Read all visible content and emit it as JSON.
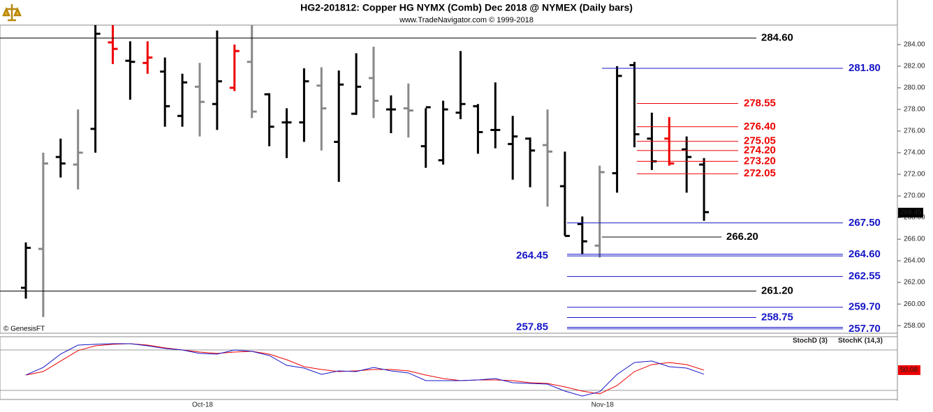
{
  "chart_data": [
    {
      "type": "ohlc",
      "title": "HG2-201812:  Copper HG NYMX (Comb) Dec 2018 @ NYMEX  (Daily bars)",
      "subtitle": "www.TradeNavigator.com © 1999-2018",
      "credit": "© GenesisFT",
      "categories": [
        null,
        null,
        null,
        null,
        null,
        null,
        null,
        null,
        null,
        null,
        "Oct-18",
        null,
        null,
        null,
        null,
        null,
        null,
        null,
        null,
        null,
        null,
        null,
        null,
        null,
        null,
        null,
        null,
        null,
        null,
        null,
        null,
        null,
        null,
        "Nov-18",
        null,
        null,
        null,
        null,
        null,
        null
      ],
      "open": [
        261.5,
        265.1,
        273.6,
        272.9,
        276.2,
        284.2,
        282.5,
        282.3,
        281.5,
        277.4,
        280.1,
        278.5,
        280.0,
        282.4,
        279.4,
        276.8,
        276.8,
        280.2,
        275.0,
        277.6,
        280.9,
        278.0,
        278.1,
        274.6,
        273.3,
        277.7,
        278.3,
        276.1,
        274.8,
        275.3,
        274.7,
        270.9,
        267.4,
        265.4,
        272.1,
        282.1,
        275.3,
        275.3,
        274.3,
        272.9
      ],
      "high": [
        265.7,
        274.0,
        275.3,
        278.0,
        285.8,
        285.8,
        284.3,
        284.3,
        282.8,
        281.3,
        282.3,
        285.3,
        284.0,
        285.8,
        279.5,
        278.1,
        281.8,
        281.9,
        281.6,
        283.2,
        283.8,
        279.3,
        280.4,
        278.1,
        278.8,
        283.4,
        278.5,
        280.5,
        277.4,
        275.4,
        278.0,
        274.1,
        268.1,
        272.8,
        282.0,
        282.4,
        277.7,
        277.3,
        275.5,
        273.5
      ],
      "low": [
        260.5,
        258.8,
        271.7,
        270.6,
        274.0,
        282.2,
        278.9,
        281.3,
        276.4,
        276.4,
        275.5,
        276.1,
        279.7,
        277.2,
        274.6,
        273.5,
        275.0,
        274.2,
        271.3,
        277.5,
        277.2,
        275.8,
        275.4,
        272.6,
        272.9,
        277.1,
        273.9,
        274.4,
        271.5,
        270.8,
        269.0,
        266.3,
        264.6,
        264.3,
        270.3,
        274.5,
        272.4,
        272.8,
        270.3,
        267.7
      ],
      "close": [
        265.2,
        273.0,
        273.0,
        274.0,
        285.0,
        283.6,
        282.4,
        282.8,
        278.3,
        280.5,
        278.7,
        280.6,
        283.4,
        277.8,
        276.4,
        276.8,
        280.6,
        278.1,
        280.3,
        280.1,
        278.8,
        278.0,
        277.9,
        278.2,
        278.0,
        278.5,
        275.9,
        276.1,
        275.5,
        274.2,
        274.1,
        266.3,
        265.8,
        272.2,
        281.1,
        275.7,
        273.2,
        273.0,
        273.6,
        268.5
      ],
      "colors": [
        "#000",
        "#888",
        "#000",
        "#888",
        "#000",
        "#e00",
        "#000",
        "#e00",
        "#000",
        "#000",
        "#888",
        "#000",
        "#e00",
        "#888",
        "#000",
        "#000",
        "#000",
        "#888",
        "#000",
        "#000",
        "#888",
        "#000",
        "#888",
        "#000",
        "#000",
        "#000",
        "#000",
        "#000",
        "#000",
        "#000",
        "#888",
        "#000",
        "#000",
        "#888",
        "#000",
        "#000",
        "#000",
        "#e00",
        "#000",
        "#000"
      ],
      "ylim": [
        257.3,
        285.8
      ],
      "yticks": [
        {
          "value": 258,
          "label": "258.00"
        },
        {
          "value": 260,
          "label": "260.00"
        },
        {
          "value": 262,
          "label": "262.00"
        },
        {
          "value": 264,
          "label": "264.00"
        },
        {
          "value": 266,
          "label": "266.00"
        },
        {
          "value": 268,
          "label": "268.00"
        },
        {
          "value": 270,
          "label": "270.00"
        },
        {
          "value": 272,
          "label": "272.00"
        },
        {
          "value": 274,
          "label": "274.00"
        },
        {
          "value": 276,
          "label": "276.00"
        },
        {
          "value": 278,
          "label": "278.00"
        },
        {
          "value": 280,
          "label": "280.00"
        },
        {
          "value": 282,
          "label": "282.00"
        },
        {
          "value": 284,
          "label": "284.00"
        }
      ],
      "last_price": {
        "value": 268.45,
        "label": "268.45"
      },
      "levels": [
        {
          "value": 284.6,
          "label": "284.60",
          "color": "#000"
        },
        {
          "value": 281.8,
          "label": "281.80",
          "color": "#1515c8"
        },
        {
          "value": 278.55,
          "label": "278.55",
          "color": "#e00"
        },
        {
          "value": 276.4,
          "label": "276.40",
          "color": "#e00"
        },
        {
          "value": 275.05,
          "label": "275.05",
          "color": "#e00"
        },
        {
          "value": 274.2,
          "label": "274.20",
          "color": "#e00"
        },
        {
          "value": 273.2,
          "label": "273.20",
          "color": "#e00"
        },
        {
          "value": 272.05,
          "label": "272.05",
          "color": "#e00"
        },
        {
          "value": 267.5,
          "label": "267.50",
          "color": "#1515c8"
        },
        {
          "value": 266.2,
          "label": "266.20",
          "color": "#000"
        },
        {
          "value": 264.6,
          "label": "264.60",
          "color": "#1515c8"
        },
        {
          "value": 264.45,
          "label": "264.45",
          "color": "#1515c8"
        },
        {
          "value": 262.55,
          "label": "262.55",
          "color": "#1515c8"
        },
        {
          "value": 261.2,
          "label": "261.20",
          "color": "#000"
        },
        {
          "value": 259.7,
          "label": "259.70",
          "color": "#1515c8"
        },
        {
          "value": 258.75,
          "label": "258.75",
          "color": "#1515c8"
        },
        {
          "value": 257.85,
          "label": "257.85",
          "color": "#1515c8"
        },
        {
          "value": 257.7,
          "label": "257.70",
          "color": "#1515c8"
        }
      ]
    },
    {
      "type": "line",
      "series": [
        {
          "name": "StochD (3)",
          "color": "#e00",
          "values": [
            42.8,
            47.9,
            63.5,
            79,
            86.2,
            88.3,
            89.3,
            87.2,
            83.1,
            80,
            76.9,
            74.8,
            76.9,
            77.9,
            73.8,
            65.5,
            55.2,
            51,
            47.9,
            49,
            51,
            51,
            49,
            42.8,
            37.6,
            34.5,
            35.5,
            35.5,
            34.5,
            31.4,
            30.4,
            25.2,
            19,
            14.9,
            27.3,
            47.9,
            58.3,
            61.4,
            58.3,
            50.08
          ]
        },
        {
          "name": "StochK (14,3)",
          "color": "#1515c8",
          "values": [
            42.8,
            54.1,
            73.8,
            87.2,
            88.3,
            89.3,
            89.3,
            86.2,
            82.1,
            80,
            74.8,
            73.8,
            80,
            77.9,
            71.7,
            57.2,
            53.1,
            43.8,
            49,
            47.9,
            54.1,
            49,
            45.9,
            34.5,
            34.5,
            34.5,
            35.5,
            37.6,
            31.4,
            30.4,
            29.3,
            19,
            11.7,
            18,
            43.8,
            61.4,
            63.5,
            55.2,
            53.1,
            44
          ]
        }
      ],
      "ylim": [
        6.6,
        99.6
      ],
      "levels": [
        80,
        20
      ],
      "last_label": {
        "value": 50.08,
        "label": "50.08"
      }
    }
  ]
}
